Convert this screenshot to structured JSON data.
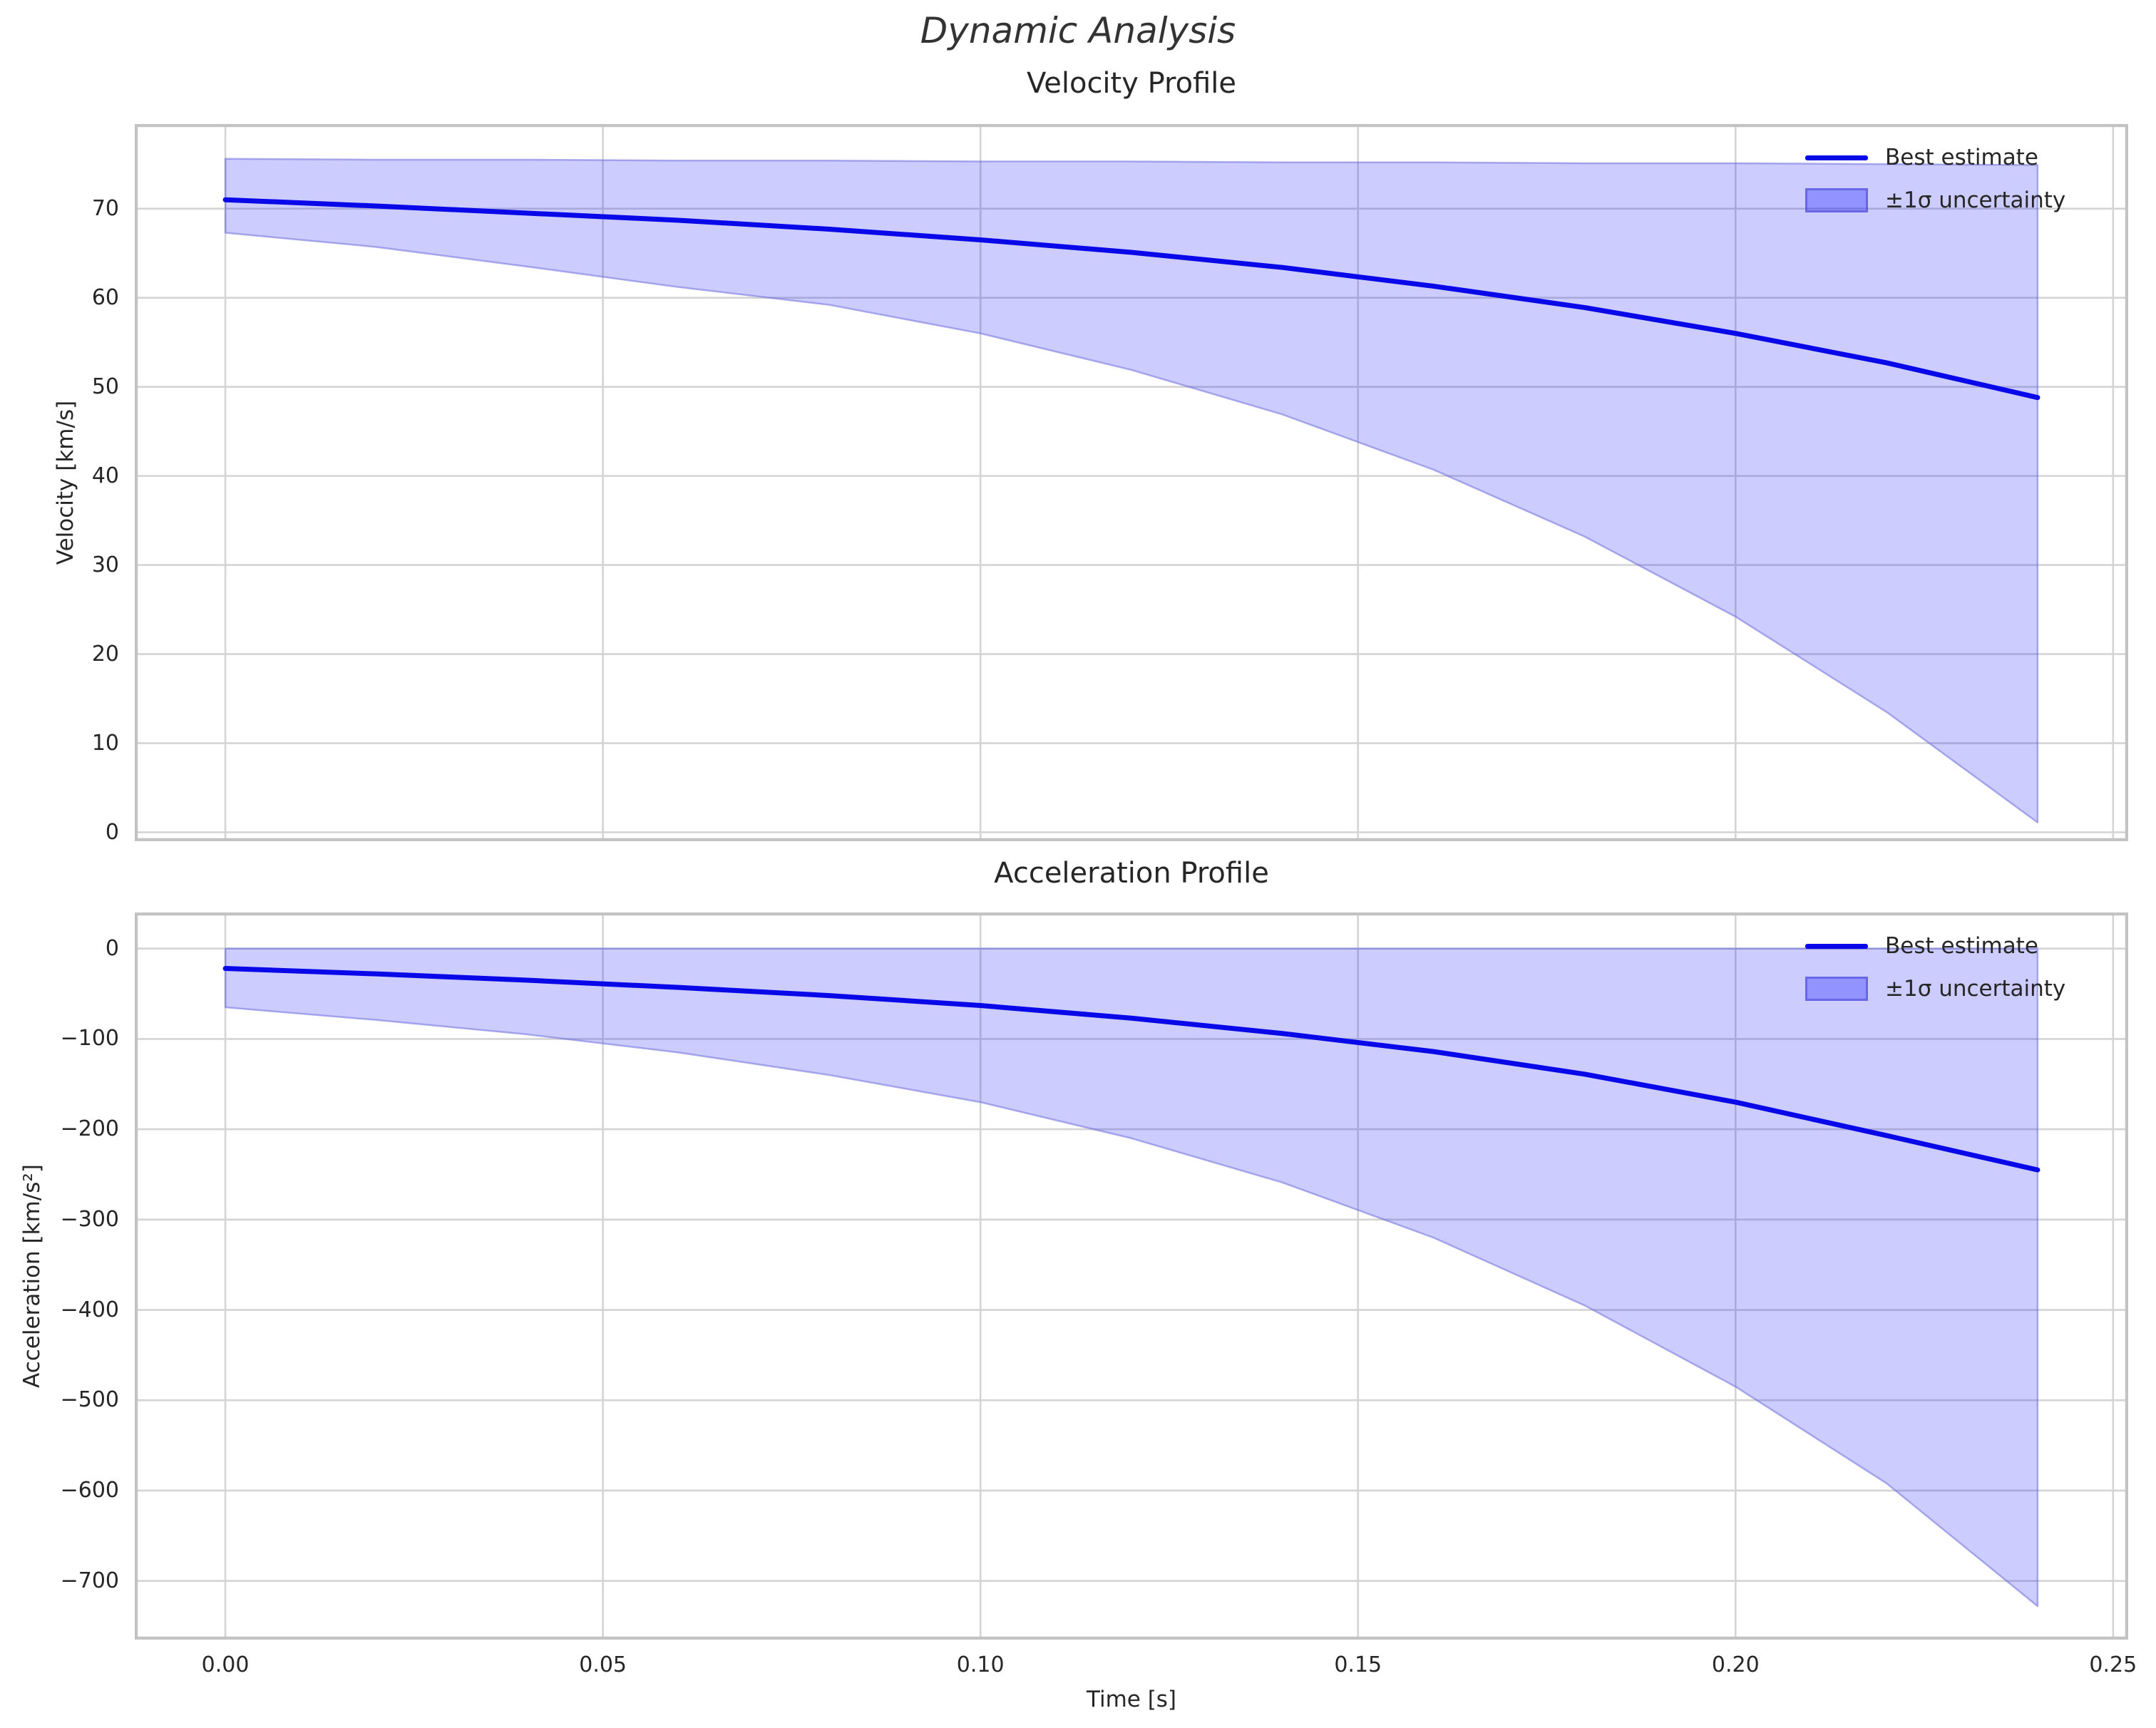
{
  "figure": {
    "suptitle": "Dynamic Analysis",
    "background_color": "#ffffff",
    "text_color": "#262626",
    "grid_color": "#d4d4d4",
    "spine_color": "#c3c3c3",
    "line_color": "#0808e8",
    "band_color": "#0000ff",
    "band_opacity": 0.2,
    "band_edge_color": "#7070dd",
    "band_edge_opacity": 0.55
  },
  "chart_data": [
    {
      "type": "line",
      "title": "Velocity Profile",
      "ylabel": "Velocity [km/s]",
      "xlabel": "",
      "grid": true,
      "legend": [
        "Best estimate",
        "±1σ uncertainty"
      ],
      "legend_position": "upper right",
      "xlim": [
        -0.012,
        0.252
      ],
      "ylim": [
        -1,
        79.5
      ],
      "xticks": [
        0.0,
        0.05,
        0.1,
        0.15,
        0.2,
        0.25
      ],
      "yticks": [
        0,
        10,
        20,
        30,
        40,
        50,
        60,
        70
      ],
      "show_xtick_labels": false,
      "x": [
        0.0,
        0.02,
        0.04,
        0.06,
        0.08,
        0.1,
        0.12,
        0.14,
        0.16,
        0.18,
        0.2,
        0.22,
        0.24
      ],
      "series": [
        {
          "name": "Best estimate",
          "values": [
            71.0,
            70.3,
            69.5,
            68.7,
            67.7,
            66.5,
            65.1,
            63.4,
            61.3,
            58.9,
            56.0,
            52.7,
            48.8
          ]
        },
        {
          "name": "+1 sigma bound",
          "values": [
            75.6,
            75.5,
            75.5,
            75.4,
            75.4,
            75.3,
            75.3,
            75.2,
            75.2,
            75.1,
            75.1,
            75.0,
            74.9
          ]
        },
        {
          "name": "-1 sigma bound",
          "values": [
            67.3,
            65.7,
            63.5,
            61.2,
            59.2,
            56.0,
            51.9,
            46.9,
            40.7,
            33.2,
            24.2,
            13.5,
            1.1
          ]
        }
      ]
    },
    {
      "type": "line",
      "title": "Acceleration Profile",
      "ylabel": "Acceleration [km/s²]",
      "xlabel": "Time [s]",
      "grid": true,
      "legend": [
        "Best estimate",
        "±1σ uncertainty"
      ],
      "legend_position": "upper right",
      "xlim": [
        -0.012,
        0.252
      ],
      "ylim": [
        -765,
        40
      ],
      "xticks": [
        0.0,
        0.05,
        0.1,
        0.15,
        0.2,
        0.25
      ],
      "yticks": [
        0,
        -100,
        -200,
        -300,
        -400,
        -500,
        -600,
        -700
      ],
      "show_xtick_labels": true,
      "x": [
        0.0,
        0.02,
        0.04,
        0.06,
        0.08,
        0.1,
        0.12,
        0.14,
        0.16,
        0.18,
        0.2,
        0.22,
        0.24
      ],
      "series": [
        {
          "name": "Best estimate",
          "values": [
            -22,
            -28,
            -35,
            -43,
            -52,
            -63,
            -77,
            -94,
            -114,
            -139,
            -170,
            -207,
            -245
          ]
        },
        {
          "name": "+1 sigma bound",
          "values": [
            0,
            0,
            0,
            0,
            0,
            0,
            0,
            0,
            0,
            0,
            0,
            0,
            0
          ]
        },
        {
          "name": "-1 sigma bound",
          "values": [
            -65,
            -79,
            -95,
            -115,
            -140,
            -170,
            -210,
            -259,
            -320,
            -395,
            -485,
            -592,
            -728
          ]
        }
      ]
    }
  ]
}
